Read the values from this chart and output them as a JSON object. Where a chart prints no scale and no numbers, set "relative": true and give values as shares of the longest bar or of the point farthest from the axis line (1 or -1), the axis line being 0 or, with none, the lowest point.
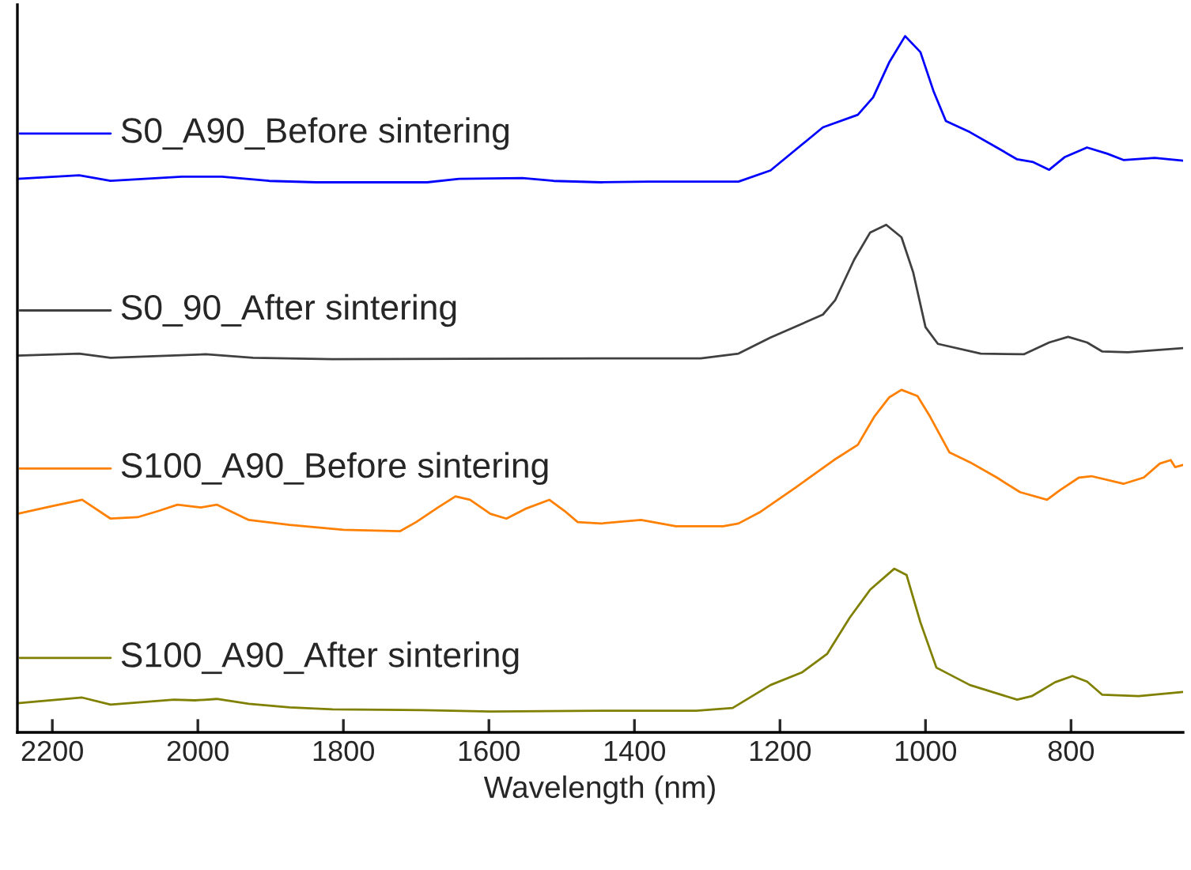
{
  "chart_data": {
    "type": "line",
    "xlabel": "Wavelength (nm)",
    "relative": true,
    "xlim": [
      2248,
      646
    ],
    "xticks": [
      2200,
      2000,
      1800,
      1600,
      1400,
      1200,
      1000,
      800
    ],
    "grid": false,
    "legend": "left",
    "marker": "none",
    "line_style": "solid",
    "series": [
      {
        "name": "S0_A90_Before sintering",
        "color": "#0000ff",
        "x": [
          2248,
          2163,
          2120,
          2022,
          1967,
          1902,
          1837,
          1685,
          1641,
          1554,
          1511,
          1446,
          1380,
          1257,
          1213,
          1141,
          1093,
          1072,
          1050,
          1028,
          1007,
          989,
          972,
          939,
          902,
          874,
          852,
          830,
          809,
          778,
          750,
          728,
          685,
          646
        ],
        "values": [
          0.795,
          0.8,
          0.792,
          0.798,
          0.798,
          0.792,
          0.79,
          0.79,
          0.795,
          0.796,
          0.792,
          0.79,
          0.791,
          0.791,
          0.807,
          0.869,
          0.887,
          0.912,
          0.962,
          1.0,
          0.977,
          0.921,
          0.878,
          0.862,
          0.84,
          0.823,
          0.819,
          0.808,
          0.826,
          0.84,
          0.831,
          0.822,
          0.825,
          0.821
        ]
      },
      {
        "name": "S0_90_After sintering",
        "color": "#404040",
        "x": [
          2248,
          2163,
          2120,
          1989,
          1924,
          1815,
          1446,
          1309,
          1257,
          1213,
          1141,
          1124,
          1098,
          1076,
          1054,
          1033,
          1017,
          1000,
          983,
          924,
          865,
          830,
          804,
          778,
          757,
          722,
          646
        ],
        "values": [
          0.541,
          0.544,
          0.538,
          0.543,
          0.538,
          0.536,
          0.537,
          0.537,
          0.544,
          0.567,
          0.6,
          0.621,
          0.679,
          0.718,
          0.729,
          0.711,
          0.661,
          0.582,
          0.558,
          0.544,
          0.543,
          0.56,
          0.568,
          0.56,
          0.547,
          0.546,
          0.552
        ]
      },
      {
        "name": "S100_A90_Before sintering",
        "color": "#ff8000",
        "x": [
          2248,
          2200,
          2159,
          2120,
          2083,
          2054,
          2028,
          1996,
          1974,
          1930,
          1874,
          1800,
          1722,
          1700,
          1670,
          1646,
          1626,
          1598,
          1576,
          1550,
          1517,
          1496,
          1478,
          1446,
          1391,
          1343,
          1278,
          1257,
          1228,
          1178,
          1126,
          1093,
          1070,
          1050,
          1033,
          1011,
          994,
          967,
          939,
          902,
          870,
          833,
          815,
          789,
          772,
          728,
          700,
          678,
          663,
          657,
          646
        ],
        "values": [
          0.314,
          0.325,
          0.334,
          0.307,
          0.309,
          0.318,
          0.327,
          0.323,
          0.327,
          0.305,
          0.298,
          0.291,
          0.289,
          0.302,
          0.323,
          0.339,
          0.334,
          0.314,
          0.307,
          0.321,
          0.334,
          0.318,
          0.302,
          0.3,
          0.305,
          0.296,
          0.296,
          0.3,
          0.316,
          0.352,
          0.391,
          0.413,
          0.454,
          0.481,
          0.492,
          0.483,
          0.454,
          0.402,
          0.388,
          0.366,
          0.345,
          0.334,
          0.348,
          0.366,
          0.368,
          0.357,
          0.366,
          0.386,
          0.391,
          0.381,
          0.384
        ]
      },
      {
        "name": "S100_A90_After sintering",
        "color": "#808000",
        "x": [
          2248,
          2159,
          2120,
          2033,
          2004,
          1974,
          1930,
          1874,
          1815,
          1691,
          1598,
          1446,
          1315,
          1265,
          1213,
          1170,
          1135,
          1104,
          1076,
          1043,
          1026,
          1007,
          985,
          939,
          874,
          854,
          822,
          798,
          778,
          757,
          707,
          646
        ],
        "values": [
          0.042,
          0.05,
          0.04,
          0.047,
          0.046,
          0.048,
          0.041,
          0.036,
          0.033,
          0.032,
          0.03,
          0.031,
          0.031,
          0.035,
          0.068,
          0.086,
          0.113,
          0.165,
          0.205,
          0.235,
          0.226,
          0.158,
          0.093,
          0.068,
          0.047,
          0.052,
          0.072,
          0.081,
          0.073,
          0.054,
          0.052,
          0.058
        ]
      }
    ]
  }
}
